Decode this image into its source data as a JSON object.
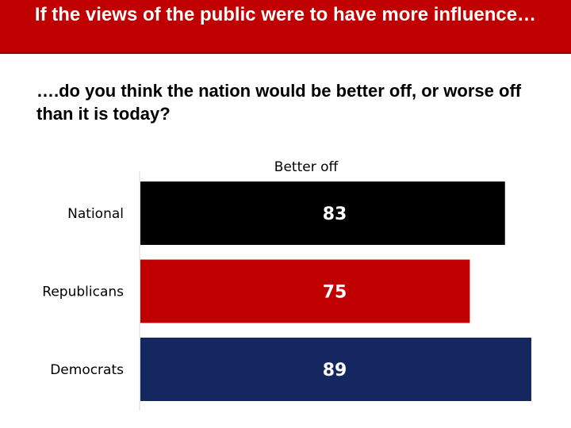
{
  "header": {
    "title": "If the views of the public were to have more influence…"
  },
  "question": "….do you think the nation would be better off, or worse off than it is today?",
  "colors": {
    "title_bar": "#c00000",
    "national": "#000000",
    "republicans": "#c00000",
    "democrats": "#14275e"
  },
  "chart_data": {
    "type": "bar",
    "orientation": "horizontal",
    "categories": [
      "National",
      "Republicans",
      "Democrats"
    ],
    "series": [
      {
        "name": "Better off",
        "values": [
          83,
          75,
          89
        ]
      }
    ],
    "bar_colors": [
      "#000000",
      "#c00000",
      "#14275e"
    ],
    "xlim": [
      0,
      89
    ],
    "grid": false,
    "legend": "top-center"
  }
}
